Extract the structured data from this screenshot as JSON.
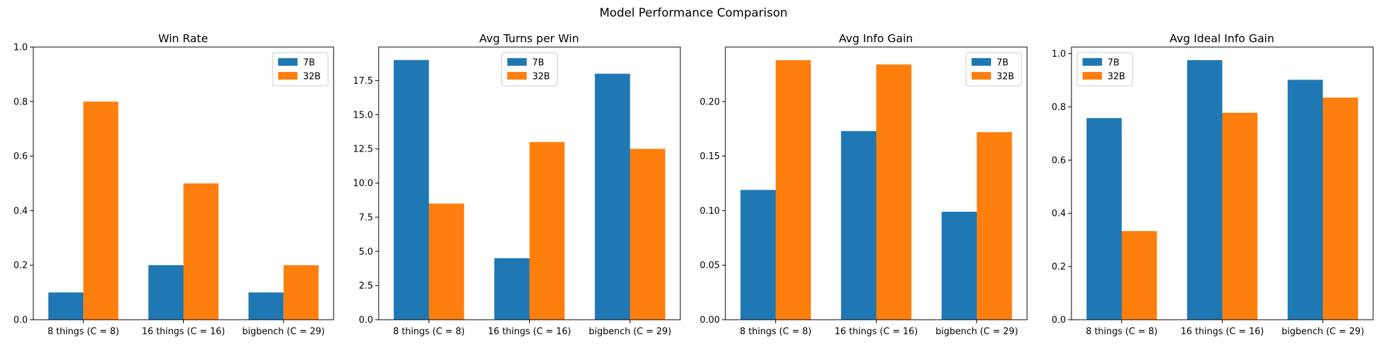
{
  "figure": {
    "title": "Model Performance Comparison"
  },
  "chart_data": [
    {
      "type": "bar",
      "title": "Win Rate",
      "categories": [
        "8 things (C = 8)",
        "16 things (C = 16)",
        "bigbench (C = 29)"
      ],
      "series": [
        {
          "name": "7B",
          "values": [
            0.1,
            0.2,
            0.1
          ],
          "color": "#1f77b4"
        },
        {
          "name": "32B",
          "values": [
            0.8,
            0.5,
            0.2
          ],
          "color": "#ff7f0e"
        }
      ],
      "ylim": [
        0,
        1.0
      ],
      "yticks": [
        0.0,
        0.2,
        0.4,
        0.6,
        0.8,
        1.0
      ],
      "ytick_labels": [
        "0.0",
        "0.2",
        "0.4",
        "0.6",
        "0.8",
        "1.0"
      ],
      "legend": "upper right",
      "grid": false
    },
    {
      "type": "bar",
      "title": "Avg Turns per Win",
      "categories": [
        "8 things (C = 8)",
        "16 things (C = 16)",
        "bigbench (C = 29)"
      ],
      "series": [
        {
          "name": "7B",
          "values": [
            19.0,
            4.5,
            18.0
          ],
          "color": "#1f77b4"
        },
        {
          "name": "32B",
          "values": [
            8.5,
            13.0,
            12.5
          ],
          "color": "#ff7f0e"
        }
      ],
      "ylim": [
        0,
        19.95
      ],
      "yticks": [
        0.0,
        2.5,
        5.0,
        7.5,
        10.0,
        12.5,
        15.0,
        17.5
      ],
      "ytick_labels": [
        "0.0",
        "2.5",
        "5.0",
        "7.5",
        "10.0",
        "12.5",
        "15.0",
        "17.5"
      ],
      "legend": "upper center",
      "grid": false
    },
    {
      "type": "bar",
      "title": "Avg Info Gain",
      "categories": [
        "8 things (C = 8)",
        "16 things (C = 16)",
        "bigbench (C = 29)"
      ],
      "series": [
        {
          "name": "7B",
          "values": [
            0.119,
            0.173,
            0.099
          ],
          "color": "#1f77b4"
        },
        {
          "name": "32B",
          "values": [
            0.238,
            0.234,
            0.172
          ],
          "color": "#ff7f0e"
        }
      ],
      "ylim": [
        0,
        0.25
      ],
      "yticks": [
        0.0,
        0.05,
        0.1,
        0.15,
        0.2
      ],
      "ytick_labels": [
        "0.00",
        "0.05",
        "0.10",
        "0.15",
        "0.20"
      ],
      "legend": "upper right",
      "grid": false
    },
    {
      "type": "bar",
      "title": "Avg Ideal Info Gain",
      "categories": [
        "8 things (C = 8)",
        "16 things (C = 16)",
        "bigbench (C = 29)"
      ],
      "series": [
        {
          "name": "7B",
          "values": [
            0.758,
            0.976,
            0.902
          ],
          "color": "#1f77b4"
        },
        {
          "name": "32B",
          "values": [
            0.333,
            0.778,
            0.835
          ],
          "color": "#ff7f0e"
        }
      ],
      "ylim": [
        0,
        1.025
      ],
      "yticks": [
        0.0,
        0.2,
        0.4,
        0.6,
        0.8,
        1.0
      ],
      "ytick_labels": [
        "0.0",
        "0.2",
        "0.4",
        "0.6",
        "0.8",
        "1.0"
      ],
      "legend": "upper left",
      "grid": false
    }
  ]
}
